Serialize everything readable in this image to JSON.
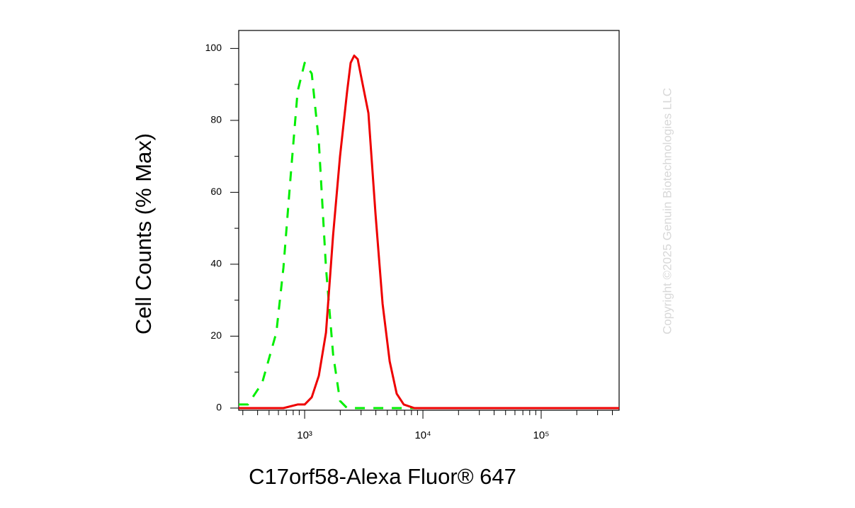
{
  "chart_data": {
    "type": "line",
    "xlabel": "C17orf58-Alexa Fluor® 647",
    "ylabel": "Cell Counts (% Max)",
    "watermark": "Copyright ©2025 Genuin Biotechnologies LLC",
    "xscale": "log",
    "xlim": [
      277,
      456000
    ],
    "xticks": [
      {
        "value": 1000,
        "label": "10³"
      },
      {
        "value": 10000,
        "label": "10⁴"
      },
      {
        "value": 100000,
        "label": "10⁵"
      }
    ],
    "xminor_ticks": [
      300,
      400,
      500,
      600,
      700,
      800,
      900,
      2000,
      3000,
      4000,
      5000,
      6000,
      7000,
      8000,
      9000,
      20000,
      30000,
      40000,
      50000,
      60000,
      70000,
      80000,
      90000,
      200000,
      300000,
      400000
    ],
    "ylim": [
      -0.6,
      105
    ],
    "yticks": [
      0,
      20,
      40,
      60,
      80,
      100
    ],
    "yminor_ticks": [
      10,
      30,
      50,
      70,
      90
    ],
    "series": [
      {
        "color": "#00ee00",
        "dashed": true,
        "x": [
          277,
          332,
          437,
          576,
          661,
          759,
          871,
          1000,
          1148,
          1318,
          1514,
          1738,
          1991,
          2286,
          3459,
          456000
        ],
        "values": [
          1,
          1,
          7,
          21,
          39,
          64,
          88,
          96,
          93,
          74,
          39,
          15,
          2,
          0,
          0,
          0
        ]
      },
      {
        "color": "#ee0000",
        "dashed": false,
        "x": [
          277,
          661,
          871,
          1000,
          1148,
          1318,
          1514,
          1738,
          1991,
          2286,
          2449,
          2624,
          2812,
          3013,
          3459,
          3972,
          4560,
          5236,
          5998,
          6887,
          8472,
          456000
        ],
        "values": [
          0,
          0,
          1,
          1,
          3,
          9,
          21,
          48,
          70,
          88,
          96,
          98,
          97,
          92,
          82,
          54,
          29,
          13,
          4,
          1,
          0,
          0
        ]
      }
    ]
  }
}
